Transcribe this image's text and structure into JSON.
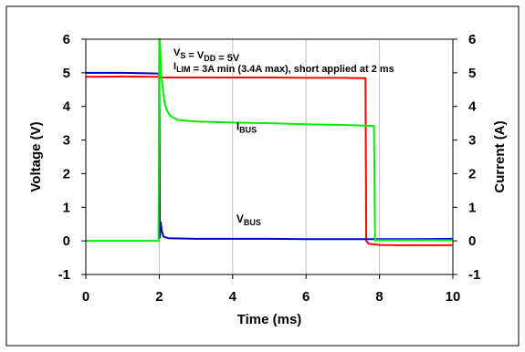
{
  "chart_data": {
    "type": "line",
    "title": "",
    "annotation_line1": {
      "parts": [
        {
          "text": "V",
          "sub": false
        },
        {
          "text": "S",
          "sub": true
        },
        {
          "text": " = V",
          "sub": false
        },
        {
          "text": "DD",
          "sub": true
        },
        {
          "text": " = 5V",
          "sub": false
        }
      ]
    },
    "annotation_line2": {
      "parts": [
        {
          "text": "I",
          "sub": false
        },
        {
          "text": "LIM",
          "sub": true
        },
        {
          "text": " = 3A min (3.4A max), short applied at 2 ms",
          "sub": false
        }
      ]
    },
    "xlabel": "Time (ms)",
    "ylabel_left": "Voltage (V)",
    "ylabel_right": "Current (A)",
    "xlim": [
      0,
      10
    ],
    "ylim": [
      -1,
      6
    ],
    "xticks": [
      "0",
      "2",
      "4",
      "6",
      "8",
      "10"
    ],
    "yticks_left": [
      "-1",
      "0",
      "1",
      "2",
      "3",
      "4",
      "5",
      "6"
    ],
    "yticks_right": [
      "-1",
      "0",
      "1",
      "2",
      "3",
      "4",
      "5",
      "6"
    ],
    "grid": "vertical",
    "series": [
      {
        "name": "red",
        "color": "#ff0000",
        "axis": "left",
        "x": [
          0,
          1.0,
          2.0,
          2.1,
          3.0,
          4.0,
          5.0,
          6.0,
          7.0,
          7.62,
          7.64,
          7.7,
          7.8,
          8.0,
          8.5,
          9.0,
          10.0
        ],
        "y": [
          4.88,
          4.89,
          4.88,
          4.86,
          4.86,
          4.86,
          4.86,
          4.85,
          4.85,
          4.84,
          0.0,
          -0.08,
          -0.1,
          -0.12,
          -0.13,
          -0.13,
          -0.13
        ]
      },
      {
        "name": "V_BUS",
        "color": "#0000cc",
        "axis": "left",
        "x": [
          0,
          1.0,
          1.98,
          2.0,
          2.02,
          2.04,
          2.07,
          2.12,
          2.25,
          3.0,
          4.0,
          5.0,
          6.0,
          7.0,
          7.6,
          7.9,
          7.95,
          8.5,
          9.0,
          10.0
        ],
        "y": [
          5.0,
          5.0,
          4.98,
          4.9,
          0.1,
          0.55,
          0.3,
          0.12,
          0.08,
          0.06,
          0.06,
          0.06,
          0.05,
          0.05,
          0.05,
          0.05,
          0.05,
          0.05,
          0.05,
          0.06
        ]
      },
      {
        "name": "I_BUS",
        "color": "#00ee00",
        "axis": "right",
        "x": [
          0,
          1.0,
          1.98,
          2.0,
          2.02,
          2.05,
          2.1,
          2.15,
          2.2,
          2.3,
          2.5,
          3.0,
          4.0,
          5.0,
          6.0,
          7.0,
          7.85,
          7.88,
          7.9,
          8.0,
          9.0,
          10.0
        ],
        "y": [
          0.0,
          0.0,
          0.0,
          6.0,
          6.0,
          5.0,
          4.5,
          4.1,
          3.9,
          3.72,
          3.6,
          3.55,
          3.52,
          3.5,
          3.47,
          3.45,
          3.42,
          0.0,
          0.02,
          0.02,
          0.02,
          0.02
        ]
      }
    ],
    "series_labels": [
      {
        "series": "I_BUS",
        "main": "I",
        "sub": "BUS",
        "at": [
          4.1,
          3.3
        ]
      },
      {
        "series": "V_BUS",
        "main": "V",
        "sub": "BUS",
        "at": [
          4.1,
          0.55
        ]
      }
    ]
  }
}
